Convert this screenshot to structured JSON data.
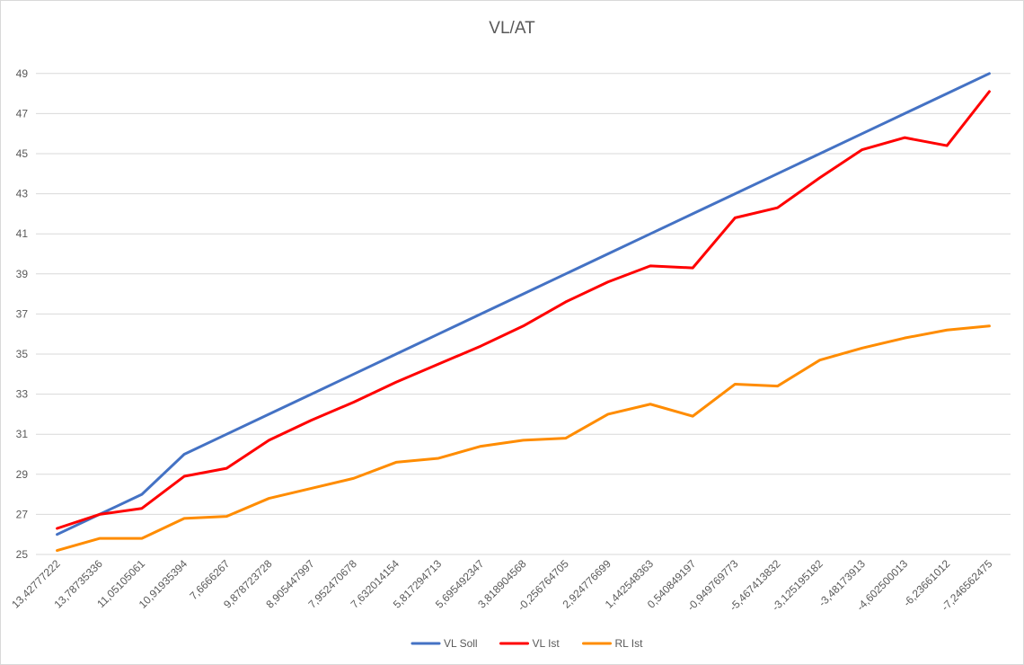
{
  "chart_data": {
    "type": "line",
    "title": "VL/AT",
    "xlabel": "",
    "ylabel": "",
    "ylim": [
      25,
      50
    ],
    "yticks": [
      25,
      27,
      29,
      31,
      33,
      35,
      37,
      39,
      41,
      43,
      45,
      47,
      49
    ],
    "grid": true,
    "legend_position": "bottom",
    "categories": [
      "13,42777222",
      "13,78735336",
      "11,05105061",
      "10,91935394",
      "7,6666267",
      "9,878723728",
      "8,905447997",
      "7,952470678",
      "7,632014154",
      "5,817294713",
      "5,695492347",
      "3,818904568",
      "-0,256764705",
      "2,924776699",
      "1,442548363",
      "0,540849197",
      "-0,949769773",
      "-5,467413832",
      "-3,125195182",
      "-3,48173913",
      "-4,602500013",
      "-6,23661012",
      "-7,246562475"
    ],
    "series": [
      {
        "name": "VL Soll",
        "color": "#4472c4",
        "values": [
          26,
          27,
          28,
          30,
          31,
          32,
          33,
          34,
          35,
          36,
          37,
          38,
          39,
          40,
          41,
          42,
          43,
          44,
          45,
          46,
          47,
          48,
          49
        ]
      },
      {
        "name": "VL Ist",
        "color": "#ff0000",
        "values": [
          26.3,
          27.0,
          27.3,
          28.9,
          29.3,
          30.7,
          31.7,
          32.6,
          33.6,
          34.5,
          35.4,
          36.4,
          37.6,
          38.6,
          39.4,
          39.3,
          41.8,
          42.3,
          43.8,
          45.2,
          45.8,
          45.4,
          48.1
        ]
      },
      {
        "name": "RL Ist",
        "color": "#ff8c00",
        "values": [
          25.2,
          25.8,
          25.8,
          26.8,
          26.9,
          27.8,
          28.3,
          28.8,
          29.6,
          29.8,
          30.4,
          30.7,
          30.8,
          32.0,
          32.5,
          31.9,
          33.5,
          33.4,
          34.7,
          35.3,
          35.8,
          36.2,
          36.4
        ]
      }
    ]
  }
}
